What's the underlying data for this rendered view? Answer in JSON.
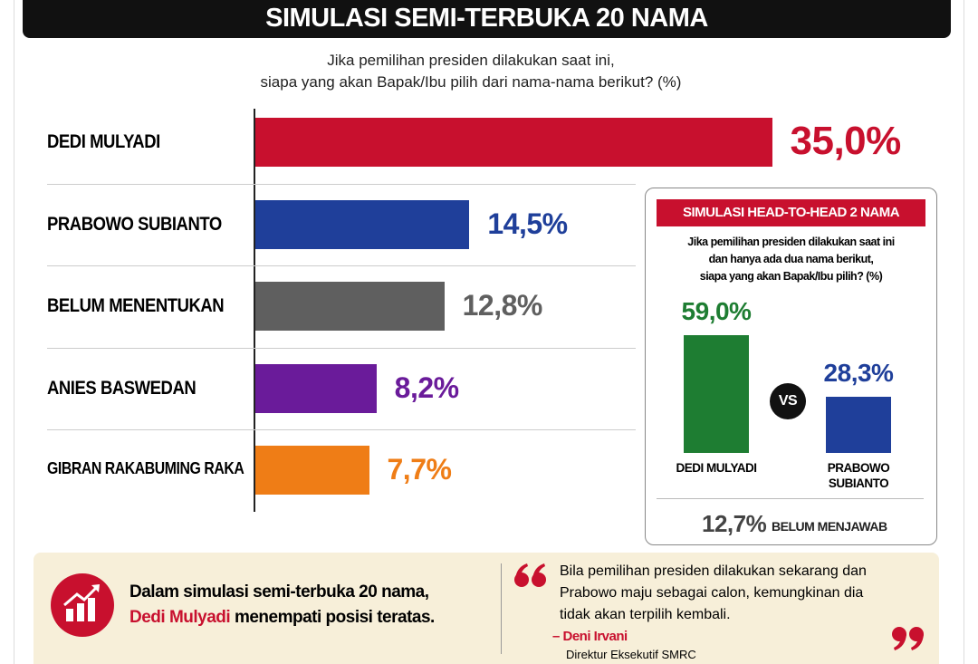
{
  "title": "SIMULASI SEMI-TERBUKA 20 NAMA",
  "chart_data": [
    {
      "type": "bar",
      "orientation": "horizontal",
      "subtitle": [
        "Jika pemilihan presiden dilakukan saat ini,",
        "siapa yang akan Bapak/Ibu pilih dari nama-nama berikut? (%)"
      ],
      "categories": [
        "DEDI MULYADI",
        "PRABOWO SUBIANTO",
        "BELUM MENENTUKAN",
        "ANIES BASWEDAN",
        "GIBRAN RAKABUMING RAKA"
      ],
      "values": [
        35.0,
        14.5,
        12.8,
        8.2,
        7.7
      ],
      "value_labels": [
        "35,0%",
        "14,5%",
        "12,8%",
        "8,2%",
        "7,7%"
      ],
      "colors": [
        "#c8102e",
        "#1f3f9a",
        "#5f5f5f",
        "#6a1b9a",
        "#ef7d16"
      ]
    },
    {
      "type": "bar",
      "orientation": "vertical",
      "title": "SIMULASI HEAD-TO-HEAD 2 NAMA",
      "subtitle": [
        "Jika pemilihan presiden dilakukan saat ini",
        "dan hanya ada dua nama berikut,",
        "siapa yang akan Bapak/Ibu pilih? (%)"
      ],
      "categories": [
        "DEDI MULYADI",
        "PRABOWO SUBIANTO"
      ],
      "values": [
        59.0,
        28.3
      ],
      "value_labels": [
        "59,0%",
        "28,3%"
      ],
      "colors": [
        "#1e7d32",
        "#1f3f9a"
      ],
      "separator": "VS",
      "note": {
        "value": "12,7%",
        "label": "BELUM MENJAWAB"
      }
    }
  ],
  "summary": {
    "line1": "Dalam simulasi semi-terbuka 20 nama,",
    "highlight": "Dedi Mulyadi",
    "rest": " menempati posisi teratas."
  },
  "quote": {
    "lines": [
      "Bila pemilihan presiden dilakukan sekarang dan",
      "Prabowo maju sebagai calon, kemungkinan dia",
      "tidak akan terpilih kembali."
    ],
    "author": "– Deni Irvani",
    "role": "Direktur Eksekutif SMRC"
  }
}
